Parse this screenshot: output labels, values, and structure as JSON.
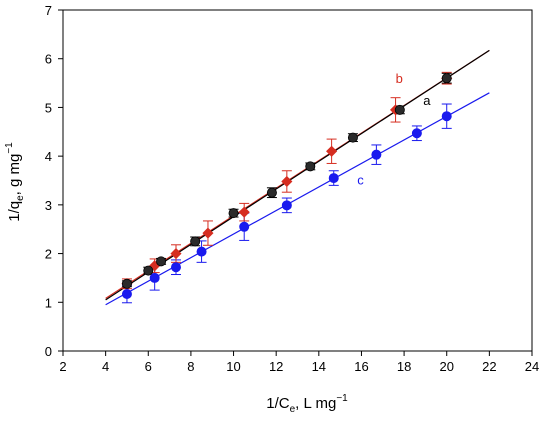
{
  "chart_data": {
    "type": "scatter",
    "xlabel": "1/C",
    "xlabel_sub": "e",
    "xlabel_units": ", L mg",
    "xlabel_sup": "−1",
    "ylabel": "1/q",
    "ylabel_sub": "e",
    "ylabel_units": ", g mg",
    "ylabel_sup": "−1",
    "xlim": [
      2,
      24
    ],
    "ylim": [
      0,
      7
    ],
    "xticks": [
      2,
      4,
      6,
      8,
      10,
      12,
      14,
      16,
      18,
      20,
      22,
      24
    ],
    "yticks": [
      0,
      1,
      2,
      3,
      4,
      5,
      6,
      7
    ],
    "grid": false,
    "legend": "none",
    "series": [
      {
        "name": "a",
        "color": "#000000",
        "fill": "#2a2a2a",
        "marker": "circle",
        "label_pos": [
          18.9,
          5.05
        ],
        "x": [
          5.0,
          6.0,
          6.6,
          8.2,
          10.0,
          11.8,
          13.6,
          15.6,
          17.8,
          20.0
        ],
        "y": [
          1.38,
          1.65,
          1.84,
          2.25,
          2.83,
          3.25,
          3.79,
          4.38,
          4.95,
          5.6
        ],
        "err": [
          0.06,
          0.07,
          0.06,
          0.09,
          0.08,
          0.1,
          0.07,
          0.08,
          0.08,
          0.1
        ],
        "fit": {
          "x": [
            4,
            22
          ],
          "y": [
            1.05,
            6.17
          ]
        }
      },
      {
        "name": "b",
        "color": "#d62d20",
        "fill": "#d62d20",
        "marker": "diamond",
        "label_pos": [
          17.6,
          5.5
        ],
        "x": [
          5.0,
          6.3,
          7.3,
          8.8,
          10.5,
          12.5,
          14.6,
          17.6,
          20.0
        ],
        "y": [
          1.38,
          1.75,
          2.0,
          2.42,
          2.85,
          3.48,
          4.1,
          4.95,
          5.6
        ],
        "err": [
          0.1,
          0.14,
          0.18,
          0.25,
          0.18,
          0.22,
          0.25,
          0.25,
          0.12
        ],
        "fit": {
          "x": [
            4,
            22
          ],
          "y": [
            1.08,
            6.17
          ]
        }
      },
      {
        "name": "c",
        "color": "#1a1aee",
        "fill": "#1a1aee",
        "marker": "circle",
        "label_pos": [
          15.8,
          3.42
        ],
        "x": [
          5.0,
          6.3,
          7.3,
          8.5,
          10.5,
          12.5,
          14.7,
          16.7,
          18.6,
          20.0
        ],
        "y": [
          1.17,
          1.5,
          1.72,
          2.04,
          2.55,
          2.99,
          3.55,
          4.03,
          4.47,
          4.82
        ],
        "err": [
          0.18,
          0.25,
          0.15,
          0.22,
          0.28,
          0.15,
          0.15,
          0.2,
          0.15,
          0.25
        ],
        "fit": {
          "x": [
            4,
            22
          ],
          "y": [
            0.95,
            5.3
          ]
        }
      }
    ]
  }
}
